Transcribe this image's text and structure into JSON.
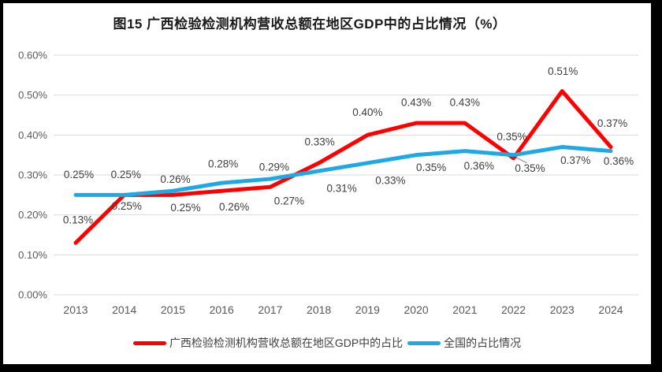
{
  "frame": {
    "background": "#FFFFFF",
    "border_color": "#000000"
  },
  "chart_data": {
    "type": "line",
    "title": "图15 广西检验检测机构营收总额在地区GDP中的占比情况（%）",
    "categories": [
      "2013",
      "2014",
      "2015",
      "2016",
      "2017",
      "2018",
      "2019",
      "2020",
      "2021",
      "2022",
      "2023",
      "2024"
    ],
    "series": [
      {
        "name": "广西检验检测机构营收总额在地区GDP中的占比",
        "color": "#FF0000",
        "values": [
          0.13,
          0.25,
          0.25,
          0.26,
          0.27,
          0.33,
          0.4,
          0.43,
          0.43,
          0.35,
          0.51,
          0.37
        ],
        "labels": [
          "0.13%",
          "0.25%",
          "0.25%",
          "0.26%",
          "0.27%",
          "0.33%",
          "0.40%",
          "0.43%",
          "0.43%",
          "0.35%",
          "0.51%",
          "0.37%"
        ]
      },
      {
        "name": "全国的占比情况",
        "color": "#1EA9E4",
        "values": [
          0.25,
          0.25,
          0.26,
          0.28,
          0.29,
          0.31,
          0.33,
          0.35,
          0.36,
          0.35,
          0.37,
          0.36
        ],
        "labels": [
          "0.25%",
          "0.25%",
          "0.26%",
          "0.28%",
          "0.29%",
          "0.31%",
          "0.33%",
          "0.35%",
          "0.36%",
          "0.35%",
          "0.37%",
          "0.36%"
        ]
      }
    ],
    "y_ticks": [
      "0.00%",
      "0.10%",
      "0.20%",
      "0.30%",
      "0.40%",
      "0.50%",
      "0.60%"
    ],
    "ylim": [
      0,
      0.6
    ],
    "xlabel": "",
    "ylabel": "",
    "grid": "horizontal",
    "legend_position": "bottom",
    "gridline_color": "#D9D9D9",
    "axis_text_color": "#595959",
    "label_text_color": "#3d3d3d",
    "leader_line": {
      "series": 1,
      "index": 9,
      "color": "#A6A6A6"
    }
  }
}
